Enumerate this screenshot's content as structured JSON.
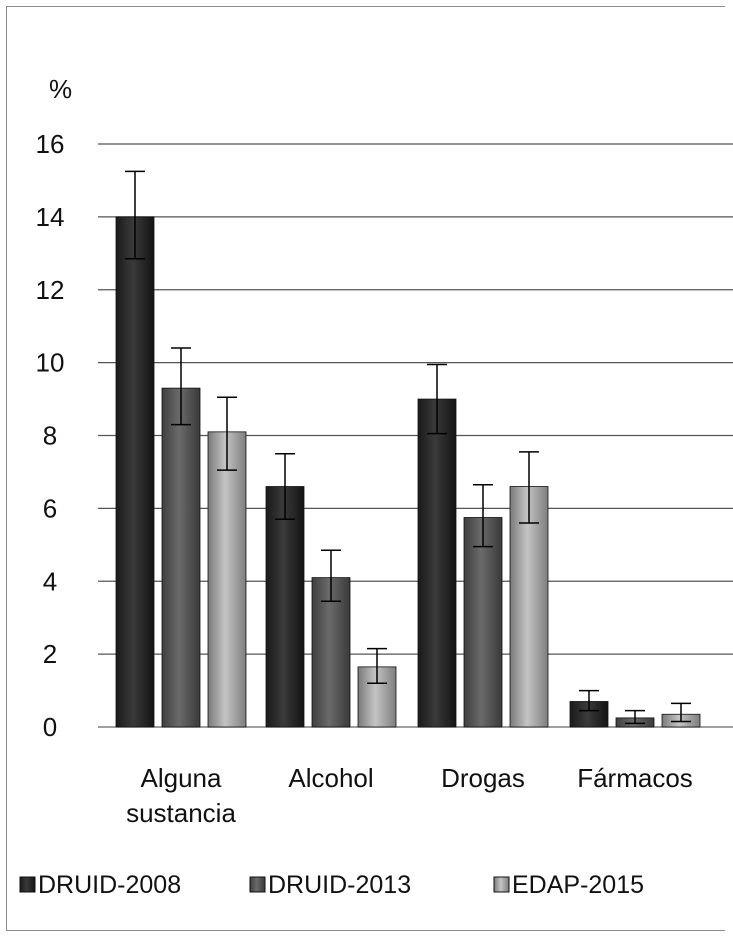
{
  "chart_data": {
    "type": "bar",
    "title": "",
    "ylabel": "%",
    "xlabel": "",
    "ylim": [
      0,
      16
    ],
    "yticks": [
      "0",
      "2",
      "4",
      "6",
      "8",
      "10",
      "12",
      "14",
      "16"
    ],
    "grid": true,
    "legend_position": "bottom",
    "categories": [
      [
        "Alguna",
        "sustancia"
      ],
      [
        "Alcohol"
      ],
      [
        "Drogas"
      ],
      [
        "Fármacos"
      ]
    ],
    "series": [
      {
        "name": "DRUID-2008",
        "color": "#2e2e2e",
        "values": [
          14.0,
          6.6,
          9.0,
          0.7
        ],
        "err_low": [
          12.85,
          5.7,
          8.05,
          0.45
        ],
        "err_high": [
          15.25,
          7.5,
          9.95,
          1.0
        ]
      },
      {
        "name": "DRUID-2013",
        "color": "#575757",
        "values": [
          9.3,
          4.1,
          5.75,
          0.25
        ],
        "err_low": [
          8.3,
          3.45,
          4.95,
          0.1
        ],
        "err_high": [
          10.4,
          4.85,
          6.65,
          0.45
        ]
      },
      {
        "name": "EDAP-2015",
        "color": "#8e8e8e",
        "values": [
          8.1,
          1.65,
          6.6,
          0.35
        ],
        "err_low": [
          7.05,
          1.2,
          5.6,
          0.15
        ],
        "err_high": [
          9.05,
          2.15,
          7.55,
          0.65
        ]
      }
    ]
  }
}
